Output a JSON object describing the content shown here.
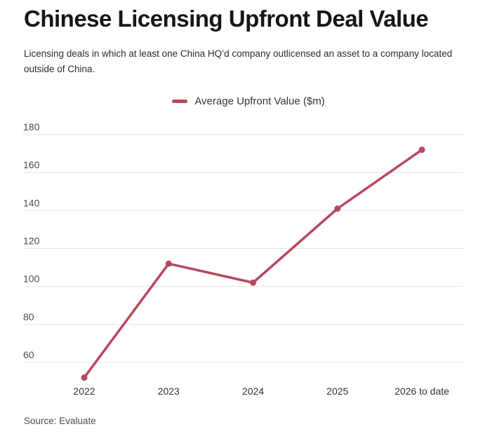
{
  "page": {
    "title": "Chinese Licensing Upfront Deal Value",
    "subtitle": "Licensing deals in which at least one China HQ’d company outlicensed an asset to a company located outside of China.",
    "source": "Source: Evaluate"
  },
  "legend": {
    "label": "Average Upfront Value ($m)"
  },
  "chart_data": {
    "type": "line",
    "title": "Chinese Licensing Upfront Deal Value",
    "subtitle": "Licensing deals in which at least one China HQ’d company outlicensed an asset to a company located outside of China.",
    "categories": [
      "2022",
      "2023",
      "2024",
      "2025",
      "2026 to date"
    ],
    "series": [
      {
        "name": "Average Upfront Value ($m)",
        "values": [
          52,
          112,
          102,
          141,
          172
        ]
      }
    ],
    "xlabel": "",
    "ylabel": "",
    "ylim": [
      50,
      185
    ],
    "yticks": [
      60,
      80,
      100,
      120,
      140,
      160,
      180
    ],
    "grid": true,
    "legend_position": "top",
    "line_color": "#b5495e",
    "marker_color": "#b5495e",
    "gridline_color": "#e4e4e4",
    "ytick_color": "#4d4d4d",
    "xtick_color": "#333333",
    "source": "Source: Evaluate"
  }
}
